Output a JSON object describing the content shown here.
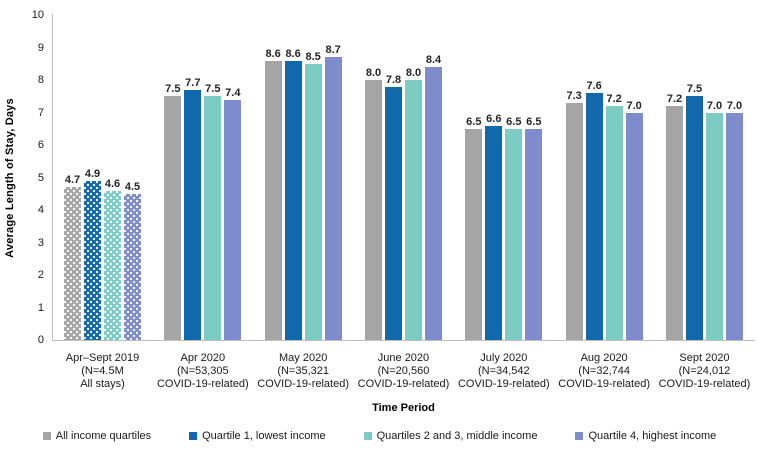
{
  "chart_data": {
    "type": "bar",
    "title": "",
    "ylabel": "Average Length of Stay, Days",
    "xlabel": "Time Period",
    "ylim": [
      0,
      10
    ],
    "y_ticks": [
      0,
      1,
      2,
      3,
      4,
      5,
      6,
      7,
      8,
      9,
      10
    ],
    "grid": false,
    "legend_position": "bottom",
    "categories": [
      {
        "lines": [
          "Apr–Sept 2019",
          "(N=4.5M",
          "All stays)"
        ],
        "patterned": true
      },
      {
        "lines": [
          "Apr 2020",
          "(N=53,305",
          "COVID-19-related)"
        ],
        "patterned": false
      },
      {
        "lines": [
          "May 2020",
          "(N=35,321",
          "COVID-19-related)"
        ],
        "patterned": false
      },
      {
        "lines": [
          "June 2020",
          "(N=20,560",
          "COVID-19-related)"
        ],
        "patterned": false
      },
      {
        "lines": [
          "July 2020",
          "(N=34,542",
          "COVID-19-related)"
        ],
        "patterned": false
      },
      {
        "lines": [
          "Aug 2020",
          "(N=32,744",
          "COVID-19-related)"
        ],
        "patterned": false
      },
      {
        "lines": [
          "Sept 2020",
          "(N=24,012",
          "COVID-19-related)"
        ],
        "patterned": false
      }
    ],
    "series": [
      {
        "name": "All income quartiles",
        "color": "#A5A5A5",
        "values": [
          4.7,
          7.5,
          8.6,
          8.0,
          6.5,
          7.3,
          7.2
        ]
      },
      {
        "name": "Quartile 1, lowest income",
        "color": "#1169AC",
        "values": [
          4.9,
          7.7,
          8.6,
          7.8,
          6.6,
          7.6,
          7.5
        ]
      },
      {
        "name": "Quartiles 2 and 3, middle income",
        "color": "#7DCCC4",
        "values": [
          4.6,
          7.5,
          8.5,
          8.0,
          6.5,
          7.2,
          7.0
        ]
      },
      {
        "name": "Quartile 4, highest income",
        "color": "#7E8BCD",
        "values": [
          4.5,
          7.4,
          8.7,
          8.4,
          6.5,
          7.0,
          7.0
        ]
      }
    ],
    "value_label_decimals": 1
  },
  "colors": {
    "axis_line": "#BFBFBF",
    "label_text": "#262626"
  }
}
